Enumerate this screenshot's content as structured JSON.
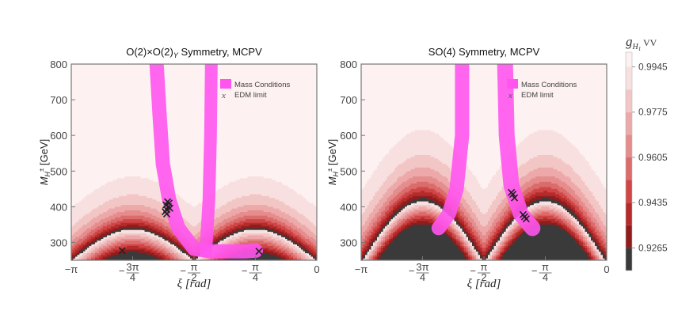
{
  "chart_data": [
    {
      "type": "contour",
      "title": "O(2)×O(2)",
      "title_subscript": "Y",
      "title_suffix": " Symmetry, MCPV",
      "xlabel": "ξ [rad]",
      "ylabel": "M",
      "ylabel_sub": "H",
      "ylabel_sup": "±",
      "ylabel_suffix": " [GeV]",
      "xlim": [
        -3.1416,
        0
      ],
      "ylim": [
        250,
        800
      ],
      "xticks": [
        {
          "value": -3.1416,
          "label": "−π"
        },
        {
          "value": -2.3562,
          "label": "−3π/4"
        },
        {
          "value": -1.5708,
          "label": "−π/2"
        },
        {
          "value": -0.7854,
          "label": "−π/4"
        },
        {
          "value": 0,
          "label": "0"
        }
      ],
      "yticks": [
        300,
        400,
        500,
        600,
        700,
        800
      ],
      "legend": {
        "position": "top-right",
        "entries": [
          "Mass Conditions",
          "EDM limit"
        ]
      },
      "edm_points": [
        [
          -2.49,
          277
        ],
        [
          -0.74,
          275
        ],
        [
          -1.92,
          392
        ],
        [
          -1.9,
          400
        ],
        [
          -1.93,
          405
        ],
        [
          -1.89,
          410
        ],
        [
          -1.91,
          414
        ],
        [
          -1.94,
          386
        ],
        [
          -1.88,
          396
        ],
        [
          -1.92,
          380
        ]
      ],
      "mass_band_center": [
        [
          -2.05,
          800
        ],
        [
          -2.01,
          650
        ],
        [
          -1.97,
          520
        ],
        [
          -1.89,
          420
        ],
        [
          -1.77,
          340
        ],
        [
          -1.57,
          282
        ],
        [
          -1.35,
          275
        ],
        [
          -1.1,
          275
        ],
        [
          -0.9,
          275
        ],
        [
          -0.78,
          277
        ]
      ],
      "mass_band_upper_branch": [
        [
          -1.42,
          275
        ],
        [
          -1.38,
          420
        ],
        [
          -1.36,
          600
        ],
        [
          -1.35,
          800
        ]
      ]
    },
    {
      "type": "contour",
      "title": "SO(4) Symmetry, MCPV",
      "xlabel": "ξ [rad]",
      "ylabel": "M",
      "ylabel_sub": "H",
      "ylabel_sup": "±",
      "ylabel_suffix": " [GeV]",
      "xlim": [
        -3.1416,
        0
      ],
      "ylim": [
        250,
        800
      ],
      "xticks": [
        {
          "value": -3.1416,
          "label": "−π"
        },
        {
          "value": -2.3562,
          "label": "−3π/4"
        },
        {
          "value": -1.5708,
          "label": "−π/2"
        },
        {
          "value": -0.7854,
          "label": "−π/4"
        },
        {
          "value": 0,
          "label": "0"
        }
      ],
      "yticks": [
        300,
        400,
        500,
        600,
        700,
        800
      ],
      "legend": {
        "position": "top-right",
        "entries": [
          "Mass Conditions",
          "EDM limit"
        ]
      },
      "edm_points": [
        [
          -1.2,
          435
        ],
        [
          -1.18,
          425
        ],
        [
          -1.22,
          440
        ],
        [
          -1.05,
          372
        ],
        [
          -1.03,
          366
        ],
        [
          -1.07,
          378
        ]
      ],
      "mass_band_center": [
        [
          -1.85,
          800
        ],
        [
          -1.85,
          600
        ],
        [
          -1.92,
          450
        ],
        [
          -2.02,
          380
        ],
        [
          -2.15,
          340
        ]
      ],
      "mass_band_right": [
        [
          -1.3,
          800
        ],
        [
          -1.28,
          600
        ],
        [
          -1.22,
          460
        ],
        [
          -1.1,
          380
        ],
        [
          -0.95,
          340
        ]
      ]
    }
  ],
  "colorbar": {
    "title": "g",
    "title_sub": "H",
    "title_sub2": "1",
    "title_suffix": " VV",
    "range": [
      0.918,
      1.0
    ],
    "ticks": [
      "0.9945",
      "0.9775",
      "0.9605",
      "0.9435",
      "0.9265"
    ],
    "tick_values": [
      0.9945,
      0.9775,
      0.9605,
      0.9435,
      0.9265
    ],
    "levels": [
      0.918,
      0.9265,
      0.935,
      0.9435,
      0.952,
      0.9605,
      0.969,
      0.9775,
      0.986,
      0.9945,
      1.0
    ],
    "colors": [
      "#3a3a3a",
      "#8f1d1d",
      "#b52a2a",
      "#cf4646",
      "#dc6b6b",
      "#e58c8c",
      "#eda9a9",
      "#f3c6c6",
      "#f9e0e0",
      "#fdf1f1"
    ]
  },
  "colors": {
    "mass_band": "#ff55ee",
    "edm_marker": "#222222",
    "frame": "#777777"
  }
}
